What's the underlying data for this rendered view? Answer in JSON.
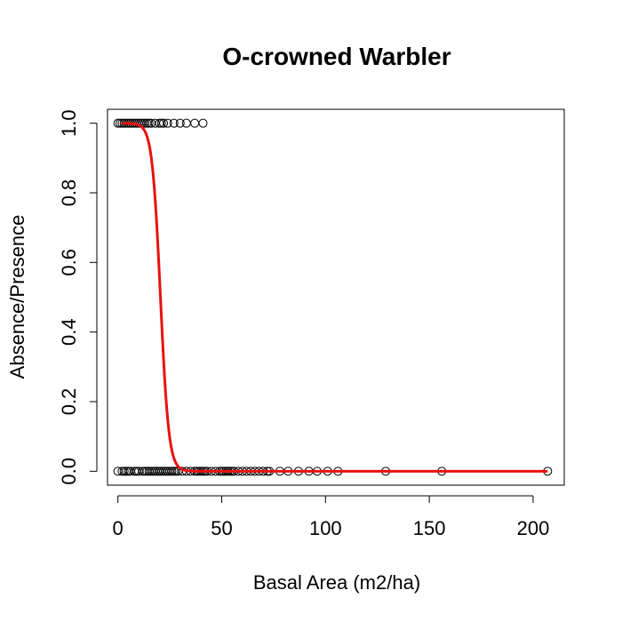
{
  "chart_data": {
    "type": "scatter",
    "title": "O-crowned Warbler",
    "xlabel": "Basal Area (m2/ha)",
    "ylabel": "Absence/Presence",
    "xlim": [
      -5,
      215
    ],
    "ylim": [
      -0.04,
      1.04
    ],
    "x_ticks": [
      0,
      50,
      100,
      150,
      200
    ],
    "x_tick_labels": [
      "0",
      "50",
      "100",
      "150",
      "200"
    ],
    "y_ticks": [
      0.0,
      0.2,
      0.4,
      0.6,
      0.8,
      1.0
    ],
    "y_tick_labels": [
      "0.0",
      "0.2",
      "0.4",
      "0.6",
      "0.8",
      "1.0"
    ],
    "grid": false,
    "legend": "none",
    "point_color": "#000000",
    "curve_color": "#e8110f",
    "presence_x": [
      0,
      1,
      2,
      3,
      4,
      5,
      6,
      7,
      8,
      9,
      10,
      11,
      12,
      13,
      14,
      15,
      16,
      18,
      20,
      21,
      22,
      24,
      27,
      30,
      33,
      37,
      41
    ],
    "absence_x": [
      0,
      2,
      3,
      4,
      5,
      6,
      8,
      9,
      10,
      12,
      13,
      14,
      15,
      16,
      17,
      18,
      19,
      20,
      21,
      22,
      23,
      24,
      25,
      26,
      27,
      28,
      29,
      31,
      33,
      35,
      37,
      38,
      39,
      40,
      41,
      42,
      43,
      45,
      47,
      49,
      50,
      51,
      52,
      53,
      54,
      55,
      56,
      58,
      60,
      62,
      64,
      66,
      68,
      70,
      72,
      73,
      78,
      82,
      87,
      92,
      96,
      101,
      106,
      129,
      156,
      207
    ],
    "fit": {
      "type": "logistic",
      "x_range": [
        2,
        207
      ],
      "midpoint": 20.5,
      "slope": -0.5
    }
  }
}
